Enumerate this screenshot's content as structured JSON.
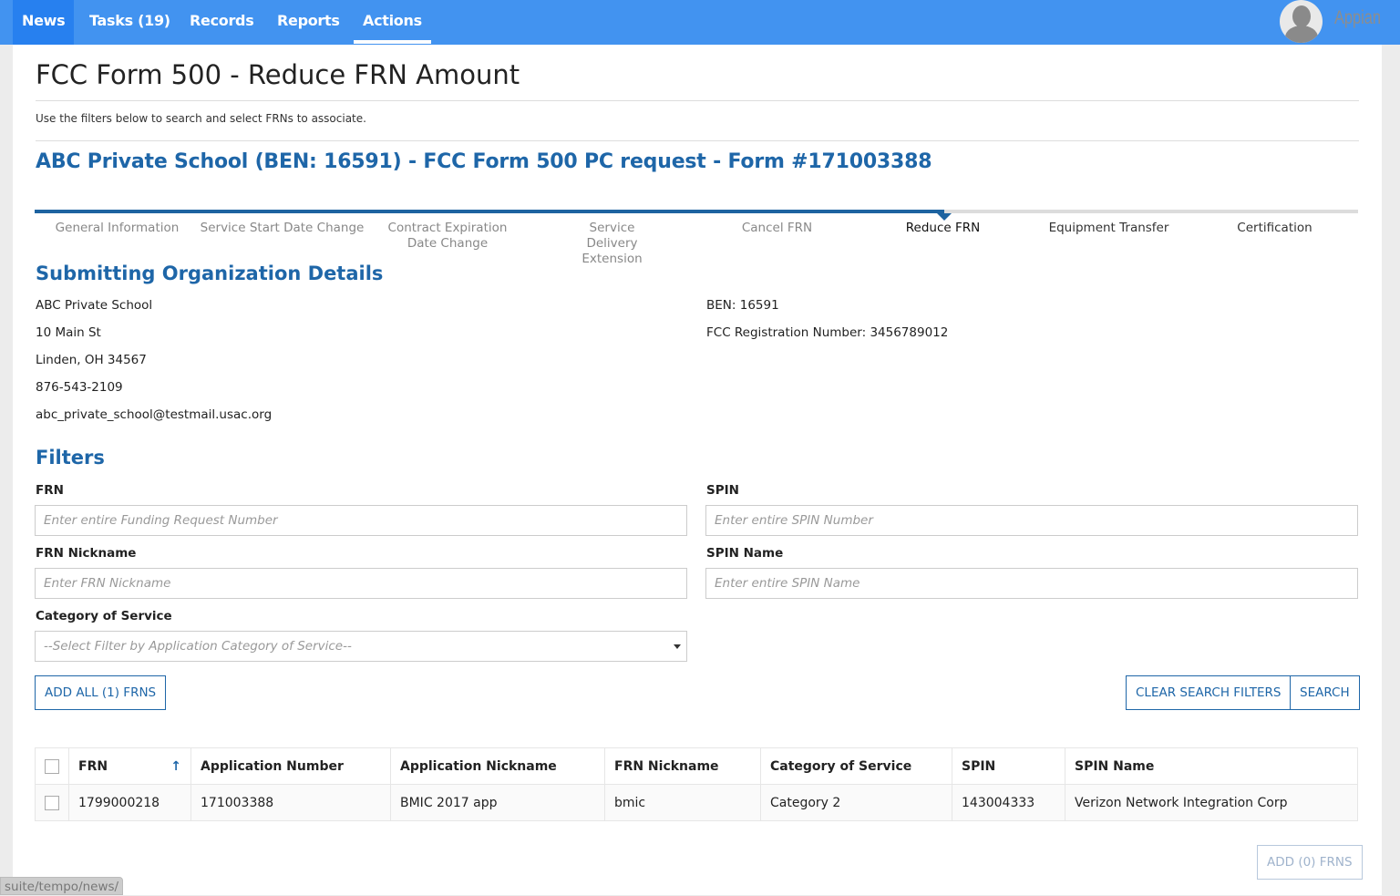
{
  "nav": {
    "tabs": [
      "News",
      "Tasks (19)",
      "Records",
      "Reports",
      "Actions"
    ],
    "active": "News",
    "selected": "Actions",
    "logo": "Appian"
  },
  "page": {
    "title": "FCC Form 500 - Reduce FRN Amount",
    "intro": "Use the filters below to search and select FRNs to associate.",
    "form_title": "ABC Private School (BEN: 16591) - FCC Form 500 PC request - Form #171003388"
  },
  "steps": [
    "General Information",
    "Service Start Date Change",
    "Contract Expiration Date Change",
    "Service Delivery Extension",
    "Cancel FRN",
    "Reduce FRN",
    "Equipment Transfer",
    "Certification"
  ],
  "current_step": "Reduce FRN",
  "org": {
    "heading": "Submitting Organization Details",
    "name": "ABC Private School",
    "street": "10 Main St",
    "city": "Linden, OH 34567",
    "phone": "876-543-2109",
    "email": "abc_private_school@testmail.usac.org",
    "ben": "BEN: 16591",
    "fcc_reg": "FCC Registration Number: 3456789012"
  },
  "filters": {
    "heading": "Filters",
    "frn_label": "FRN",
    "frn_placeholder": "Enter entire Funding Request Number",
    "spin_label": "SPIN",
    "spin_placeholder": "Enter entire SPIN Number",
    "frn_nick_label": "FRN Nickname",
    "frn_nick_placeholder": "Enter FRN Nickname",
    "spin_name_label": "SPIN Name",
    "spin_name_placeholder": "Enter entire SPIN Name",
    "cat_label": "Category of Service",
    "cat_value": "--Select Filter by Application Category of Service--"
  },
  "buttons": {
    "add_all": "ADD ALL (1) FRNS",
    "clear": "CLEAR SEARCH FILTERS",
    "search": "SEARCH",
    "add_selected": "ADD (0) FRNS"
  },
  "table": {
    "columns": [
      "FRN",
      "Application Number",
      "Application Nickname",
      "FRN Nickname",
      "Category of Service",
      "SPIN",
      "SPIN Name"
    ],
    "sort_icon": "arrow-up",
    "rows": [
      [
        "1799000218",
        "171003388",
        "BMIC 2017 app",
        "bmic",
        "Category 2",
        "143004333",
        "Verizon Network Integration Corp"
      ]
    ]
  },
  "status_bar": "suite/tempo/news/",
  "colors": {
    "nav": "#4293f0",
    "accent": "#1e66a8"
  }
}
